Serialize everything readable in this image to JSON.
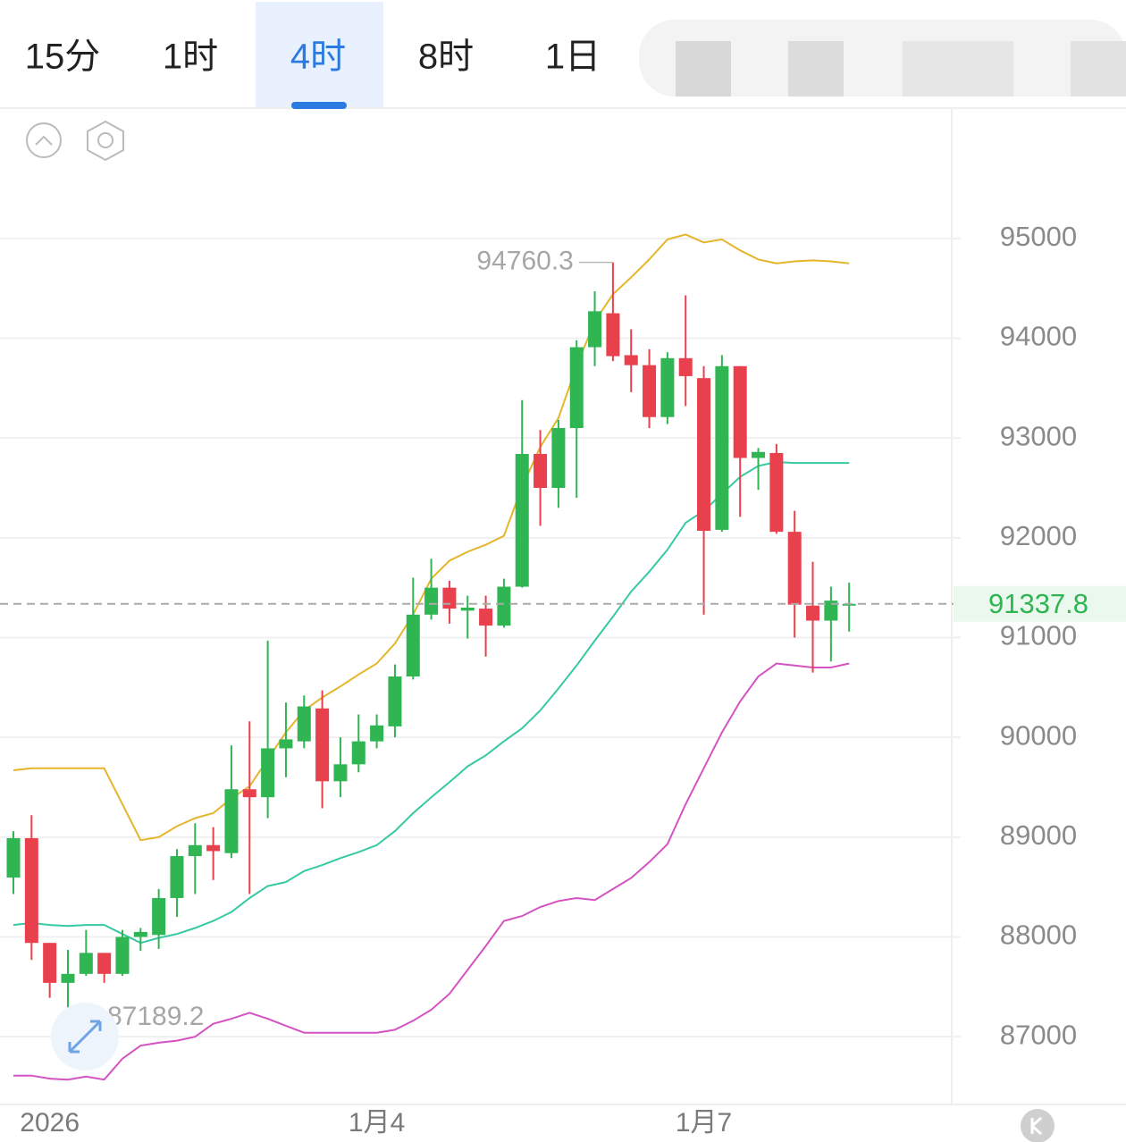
{
  "tabs": {
    "items": [
      "15分",
      "1时",
      "4时",
      "8时",
      "1日"
    ],
    "active": 2
  },
  "chart_data": {
    "type": "candlestick",
    "categories": [
      null,
      null,
      "2026",
      null,
      null,
      null,
      null,
      null,
      null,
      null,
      null,
      null,
      null,
      null,
      null,
      null,
      null,
      null,
      null,
      null,
      "1月4",
      null,
      null,
      null,
      null,
      null,
      null,
      null,
      null,
      null,
      null,
      null,
      null,
      null,
      null,
      null,
      null,
      null,
      "1月7",
      null,
      null,
      null,
      null,
      null,
      null,
      null,
      null
    ],
    "open": [
      88595,
      88990,
      87940,
      87540,
      87630,
      87840,
      87630,
      88000,
      88020,
      88390,
      88810,
      88920,
      88840,
      89480,
      89400,
      89890,
      89960,
      90290,
      89560,
      89730,
      89960,
      90110,
      90610,
      91230,
      91500,
      91270,
      91290,
      91120,
      91510,
      92840,
      92500,
      93100,
      93910,
      94250,
      93830,
      93730,
      93210,
      93800,
      93600,
      92080,
      93720,
      92800,
      92850,
      92060,
      91320,
      91170,
      91320
    ],
    "high": [
      89060,
      89220,
      87940,
      87870,
      88070,
      87840,
      88070,
      88090,
      88480,
      88880,
      89140,
      89100,
      89920,
      90160,
      90970,
      90350,
      90420,
      90470,
      90000,
      90230,
      90230,
      90730,
      91600,
      91790,
      91570,
      91420,
      91420,
      91590,
      93380,
      93080,
      93180,
      93980,
      94470,
      94760.3,
      94090,
      93890,
      93860,
      94430,
      93720,
      93830,
      93720,
      92900,
      92940,
      92270,
      91760,
      91510,
      91550
    ],
    "low": [
      88430,
      87770,
      87390,
      87189.2,
      87610,
      87540,
      87610,
      87860,
      87880,
      88200,
      88430,
      88570,
      88790,
      88430,
      89190,
      89600,
      89890,
      89290,
      89400,
      89650,
      89890,
      90000,
      90580,
      91180,
      91140,
      90990,
      90810,
      91100,
      91500,
      92120,
      92300,
      92400,
      93720,
      93770,
      93460,
      93100,
      93140,
      93320,
      91230,
      92060,
      92210,
      92480,
      92040,
      91000,
      90650,
      90760,
      91060
    ],
    "close": [
      88990,
      87940,
      87540,
      87630,
      87840,
      87630,
      88000,
      88050,
      88390,
      88810,
      88920,
      88860,
      89480,
      89400,
      89890,
      89980,
      90310,
      89560,
      89730,
      89960,
      90120,
      90610,
      91230,
      91500,
      91290,
      91300,
      91120,
      91510,
      92840,
      92500,
      93100,
      93910,
      94270,
      93820,
      93730,
      93210,
      93800,
      93620,
      92070,
      93720,
      92800,
      92860,
      92060,
      91330,
      91170,
      91370,
      91337.8
    ],
    "up_color": "#2fb552",
    "down_color": "#e8404c",
    "lines": [
      {
        "color": "#e5b52a",
        "values": [
          89670,
          89690,
          89690,
          89690,
          89690,
          89690,
          89330,
          88970,
          89000,
          89110,
          89190,
          89240,
          89390,
          89510,
          89780,
          90050,
          90270,
          90400,
          90510,
          90630,
          90740,
          90940,
          91230,
          91590,
          91770,
          91860,
          91930,
          92020,
          92510,
          92910,
          93200,
          93720,
          94170,
          94440,
          94610,
          94790,
          94990,
          95040,
          94960,
          94990,
          94880,
          94790,
          94750,
          94770,
          94780,
          94770,
          94750
        ]
      },
      {
        "color": "#36c9a3",
        "values": [
          88120,
          88140,
          88120,
          88110,
          88120,
          88120,
          88030,
          87940,
          87990,
          88030,
          88090,
          88160,
          88250,
          88390,
          88510,
          88550,
          88660,
          88720,
          88790,
          88850,
          88920,
          89060,
          89240,
          89400,
          89550,
          89710,
          89820,
          89960,
          90090,
          90270,
          90490,
          90720,
          90970,
          91210,
          91460,
          91660,
          91880,
          92150,
          92270,
          92440,
          92610,
          92720,
          92760,
          92750,
          92750,
          92750,
          92750
        ]
      },
      {
        "color": "#d552c2",
        "values": [
          86610,
          86610,
          86580,
          86570,
          86600,
          86570,
          86780,
          86910,
          86940,
          86960,
          87000,
          87130,
          87180,
          87240,
          87180,
          87110,
          87040,
          87040,
          87040,
          87040,
          87040,
          87070,
          87160,
          87270,
          87430,
          87670,
          87910,
          88160,
          88210,
          88300,
          88360,
          88390,
          88370,
          88480,
          88590,
          88750,
          88930,
          89330,
          89690,
          90050,
          90360,
          90610,
          90740,
          90720,
          90700,
          90700,
          90740
        ]
      }
    ],
    "ylim": [
      86330,
      96270
    ],
    "yticks": [
      87000,
      88000,
      89000,
      90000,
      91000,
      92000,
      93000,
      94000,
      95000
    ],
    "grid": true
  }
}
